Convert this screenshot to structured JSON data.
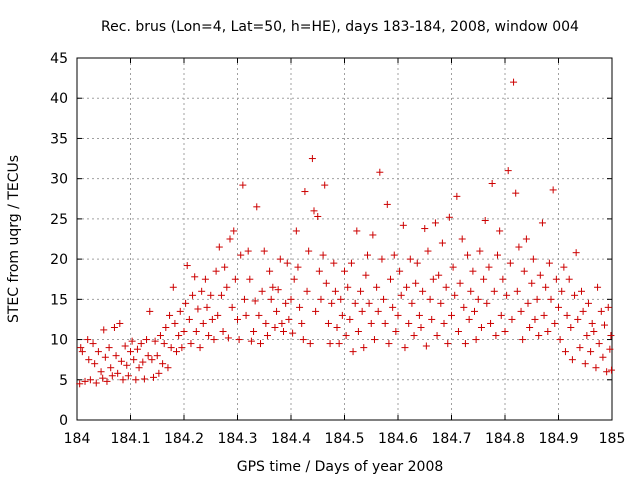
{
  "chart_data": {
    "type": "scatter",
    "title": "Rec. brus (Lon=4, Lat=50, h=HE), days 183-184, 2008, window 004",
    "xlabel": "GPS time / Days of year 2008",
    "ylabel": "STEC from uqrg / TECUs",
    "xlim": [
      184,
      185
    ],
    "ylim": [
      0,
      45
    ],
    "xticks": [
      "184",
      "184.1",
      "184.2",
      "184.3",
      "184.4",
      "184.5",
      "184.6",
      "184.7",
      "184.8",
      "184.9",
      "185"
    ],
    "yticks": [
      "0",
      "5",
      "10",
      "15",
      "20",
      "25",
      "30",
      "35",
      "40",
      "45"
    ],
    "grid": true,
    "marker": "plus",
    "series_color": "#cc0000",
    "series": [
      {
        "name": "STEC",
        "points": [
          [
            184.005,
            4.5
          ],
          [
            184.007,
            9.0
          ],
          [
            184.01,
            8.5
          ],
          [
            184.015,
            4.8
          ],
          [
            184.02,
            10.0
          ],
          [
            184.022,
            7.5
          ],
          [
            184.025,
            5.0
          ],
          [
            184.03,
            9.5
          ],
          [
            184.033,
            7.0
          ],
          [
            184.036,
            4.6
          ],
          [
            184.04,
            8.5
          ],
          [
            184.045,
            6.0
          ],
          [
            184.048,
            5.2
          ],
          [
            184.05,
            11.2
          ],
          [
            184.053,
            7.8
          ],
          [
            184.056,
            4.8
          ],
          [
            184.06,
            9.0
          ],
          [
            184.063,
            6.5
          ],
          [
            184.066,
            5.5
          ],
          [
            184.07,
            11.5
          ],
          [
            184.073,
            8.0
          ],
          [
            184.076,
            5.8
          ],
          [
            184.08,
            12.0
          ],
          [
            184.083,
            7.3
          ],
          [
            184.086,
            5.0
          ],
          [
            184.09,
            9.2
          ],
          [
            184.093,
            6.8
          ],
          [
            184.096,
            5.5
          ],
          [
            184.1,
            8.5
          ],
          [
            184.103,
            9.8
          ],
          [
            184.106,
            7.5
          ],
          [
            184.11,
            5.0
          ],
          [
            184.113,
            8.8
          ],
          [
            184.116,
            6.5
          ],
          [
            184.12,
            9.5
          ],
          [
            184.123,
            7.2
          ],
          [
            184.126,
            5.1
          ],
          [
            184.13,
            10.0
          ],
          [
            184.133,
            8.0
          ],
          [
            184.136,
            13.5
          ],
          [
            184.14,
            7.5
          ],
          [
            184.143,
            5.3
          ],
          [
            184.146,
            9.8
          ],
          [
            184.15,
            8.0
          ],
          [
            184.153,
            5.8
          ],
          [
            184.156,
            10.5
          ],
          [
            184.16,
            7.0
          ],
          [
            184.163,
            9.5
          ],
          [
            184.166,
            11.5
          ],
          [
            184.17,
            6.5
          ],
          [
            184.173,
            13.0
          ],
          [
            184.176,
            9.0
          ],
          [
            184.18,
            16.5
          ],
          [
            184.183,
            12.0
          ],
          [
            184.186,
            8.5
          ],
          [
            184.19,
            10.5
          ],
          [
            184.193,
            13.5
          ],
          [
            184.196,
            9.0
          ],
          [
            184.2,
            11.0
          ],
          [
            184.203,
            14.5
          ],
          [
            184.206,
            19.2
          ],
          [
            184.21,
            12.5
          ],
          [
            184.213,
            9.5
          ],
          [
            184.216,
            15.5
          ],
          [
            184.22,
            17.8
          ],
          [
            184.223,
            11.0
          ],
          [
            184.226,
            13.8
          ],
          [
            184.23,
            9.0
          ],
          [
            184.233,
            16.0
          ],
          [
            184.236,
            12.0
          ],
          [
            184.24,
            17.5
          ],
          [
            184.243,
            14.0
          ],
          [
            184.246,
            10.5
          ],
          [
            184.25,
            15.5
          ],
          [
            184.253,
            12.5
          ],
          [
            184.256,
            10.0
          ],
          [
            184.26,
            18.5
          ],
          [
            184.263,
            13.0
          ],
          [
            184.266,
            21.5
          ],
          [
            184.27,
            15.5
          ],
          [
            184.273,
            11.0
          ],
          [
            184.276,
            19.0
          ],
          [
            184.28,
            16.5
          ],
          [
            184.283,
            10.2
          ],
          [
            184.286,
            22.5
          ],
          [
            184.29,
            14.0
          ],
          [
            184.293,
            23.5
          ],
          [
            184.296,
            17.5
          ],
          [
            184.3,
            12.5
          ],
          [
            184.303,
            10.0
          ],
          [
            184.306,
            20.5
          ],
          [
            184.31,
            29.2
          ],
          [
            184.313,
            15.0
          ],
          [
            184.316,
            13.0
          ],
          [
            184.32,
            21.0
          ],
          [
            184.323,
            17.5
          ],
          [
            184.326,
            9.8
          ],
          [
            184.33,
            11.0
          ],
          [
            184.333,
            14.8
          ],
          [
            184.336,
            26.5
          ],
          [
            184.34,
            13.0
          ],
          [
            184.343,
            9.5
          ],
          [
            184.346,
            16.0
          ],
          [
            184.35,
            21.0
          ],
          [
            184.353,
            12.0
          ],
          [
            184.356,
            10.5
          ],
          [
            184.36,
            18.5
          ],
          [
            184.363,
            15.0
          ],
          [
            184.366,
            16.5
          ],
          [
            184.37,
            11.5
          ],
          [
            184.373,
            13.5
          ],
          [
            184.376,
            16.2
          ],
          [
            184.38,
            20.0
          ],
          [
            184.383,
            12.0
          ],
          [
            184.386,
            11.0
          ],
          [
            184.39,
            14.5
          ],
          [
            184.393,
            19.5
          ],
          [
            184.396,
            12.5
          ],
          [
            184.4,
            15.0
          ],
          [
            184.403,
            10.8
          ],
          [
            184.406,
            17.5
          ],
          [
            184.41,
            23.5
          ],
          [
            184.413,
            19.0
          ],
          [
            184.416,
            14.0
          ],
          [
            184.42,
            12.0
          ],
          [
            184.423,
            10.0
          ],
          [
            184.426,
            28.4
          ],
          [
            184.43,
            16.0
          ],
          [
            184.433,
            21.0
          ],
          [
            184.436,
            9.5
          ],
          [
            184.44,
            32.5
          ],
          [
            184.443,
            26.0
          ],
          [
            184.446,
            13.5
          ],
          [
            184.45,
            25.3
          ],
          [
            184.453,
            18.5
          ],
          [
            184.456,
            15.0
          ],
          [
            184.46,
            20.5
          ],
          [
            184.463,
            29.2
          ],
          [
            184.466,
            17.0
          ],
          [
            184.47,
            12.0
          ],
          [
            184.473,
            9.5
          ],
          [
            184.476,
            14.5
          ],
          [
            184.48,
            19.5
          ],
          [
            184.483,
            16.0
          ],
          [
            184.486,
            11.5
          ],
          [
            184.49,
            9.5
          ],
          [
            184.493,
            15.0
          ],
          [
            184.496,
            13.0
          ],
          [
            184.5,
            18.5
          ],
          [
            184.503,
            10.5
          ],
          [
            184.506,
            16.5
          ],
          [
            184.51,
            12.5
          ],
          [
            184.513,
            19.5
          ],
          [
            184.516,
            8.5
          ],
          [
            184.52,
            14.5
          ],
          [
            184.523,
            23.5
          ],
          [
            184.526,
            11.0
          ],
          [
            184.53,
            16.0
          ],
          [
            184.533,
            13.5
          ],
          [
            184.536,
            9.0
          ],
          [
            184.54,
            18.0
          ],
          [
            184.543,
            20.5
          ],
          [
            184.546,
            14.5
          ],
          [
            184.55,
            12.0
          ],
          [
            184.553,
            23.0
          ],
          [
            184.556,
            10.0
          ],
          [
            184.56,
            16.5
          ],
          [
            184.563,
            13.5
          ],
          [
            184.566,
            30.8
          ],
          [
            184.57,
            20.0
          ],
          [
            184.573,
            15.0
          ],
          [
            184.576,
            12.0
          ],
          [
            184.58,
            26.8
          ],
          [
            184.583,
            9.5
          ],
          [
            184.586,
            17.5
          ],
          [
            184.59,
            14.0
          ],
          [
            184.593,
            20.5
          ],
          [
            184.596,
            11.0
          ],
          [
            184.6,
            13.0
          ],
          [
            184.603,
            18.5
          ],
          [
            184.606,
            15.5
          ],
          [
            184.61,
            24.2
          ],
          [
            184.613,
            9.0
          ],
          [
            184.616,
            16.5
          ],
          [
            184.62,
            12.0
          ],
          [
            184.623,
            20.0
          ],
          [
            184.626,
            14.5
          ],
          [
            184.63,
            10.5
          ],
          [
            184.633,
            17.0
          ],
          [
            184.636,
            19.5
          ],
          [
            184.64,
            13.0
          ],
          [
            184.643,
            11.5
          ],
          [
            184.646,
            16.0
          ],
          [
            184.65,
            23.8
          ],
          [
            184.653,
            9.2
          ],
          [
            184.656,
            21.0
          ],
          [
            184.66,
            15.0
          ],
          [
            184.663,
            12.5
          ],
          [
            184.666,
            17.5
          ],
          [
            184.67,
            24.5
          ],
          [
            184.673,
            10.5
          ],
          [
            184.676,
            18.0
          ],
          [
            184.68,
            14.5
          ],
          [
            184.683,
            22.0
          ],
          [
            184.686,
            12.0
          ],
          [
            184.69,
            16.5
          ],
          [
            184.693,
            9.5
          ],
          [
            184.696,
            25.2
          ],
          [
            184.7,
            13.0
          ],
          [
            184.703,
            19.0
          ],
          [
            184.706,
            15.5
          ],
          [
            184.71,
            27.8
          ],
          [
            184.713,
            11.0
          ],
          [
            184.716,
            17.0
          ],
          [
            184.72,
            22.5
          ],
          [
            184.723,
            14.0
          ],
          [
            184.726,
            9.5
          ],
          [
            184.73,
            20.5
          ],
          [
            184.733,
            12.5
          ],
          [
            184.736,
            16.0
          ],
          [
            184.74,
            18.5
          ],
          [
            184.743,
            13.5
          ],
          [
            184.746,
            10.0
          ],
          [
            184.75,
            15.0
          ],
          [
            184.753,
            21.0
          ],
          [
            184.756,
            11.5
          ],
          [
            184.76,
            17.5
          ],
          [
            184.763,
            24.8
          ],
          [
            184.766,
            14.5
          ],
          [
            184.77,
            19.0
          ],
          [
            184.773,
            12.0
          ],
          [
            184.776,
            29.4
          ],
          [
            184.78,
            16.0
          ],
          [
            184.783,
            10.5
          ],
          [
            184.786,
            20.5
          ],
          [
            184.79,
            23.5
          ],
          [
            184.793,
            13.0
          ],
          [
            184.796,
            17.5
          ],
          [
            184.8,
            11.0
          ],
          [
            184.803,
            15.5
          ],
          [
            184.806,
            31.0
          ],
          [
            184.81,
            19.5
          ],
          [
            184.813,
            12.5
          ],
          [
            184.816,
            42.0
          ],
          [
            184.82,
            28.2
          ],
          [
            184.823,
            16.0
          ],
          [
            184.826,
            21.5
          ],
          [
            184.83,
            13.5
          ],
          [
            184.833,
            10.0
          ],
          [
            184.836,
            18.5
          ],
          [
            184.84,
            22.5
          ],
          [
            184.843,
            14.5
          ],
          [
            184.846,
            11.5
          ],
          [
            184.85,
            17.0
          ],
          [
            184.853,
            20.0
          ],
          [
            184.856,
            12.5
          ],
          [
            184.86,
            15.0
          ],
          [
            184.863,
            10.5
          ],
          [
            184.866,
            18.0
          ],
          [
            184.87,
            24.5
          ],
          [
            184.873,
            13.0
          ],
          [
            184.876,
            16.5
          ],
          [
            184.88,
            11.0
          ],
          [
            184.883,
            19.5
          ],
          [
            184.886,
            15.0
          ],
          [
            184.89,
            28.6
          ],
          [
            184.893,
            12.0
          ],
          [
            184.896,
            17.5
          ],
          [
            184.9,
            14.0
          ],
          [
            184.903,
            10.0
          ],
          [
            184.906,
            16.0
          ],
          [
            184.91,
            19.0
          ],
          [
            184.913,
            8.5
          ],
          [
            184.916,
            13.0
          ],
          [
            184.92,
            17.5
          ],
          [
            184.923,
            11.5
          ],
          [
            184.926,
            7.5
          ],
          [
            184.93,
            15.5
          ],
          [
            184.933,
            20.8
          ],
          [
            184.936,
            12.5
          ],
          [
            184.94,
            9.0
          ],
          [
            184.943,
            16.0
          ],
          [
            184.946,
            13.5
          ],
          [
            184.95,
            7.0
          ],
          [
            184.953,
            10.5
          ],
          [
            184.956,
            14.5
          ],
          [
            184.96,
            8.5
          ],
          [
            184.963,
            12.0
          ],
          [
            184.966,
            11.0
          ],
          [
            184.97,
            6.5
          ],
          [
            184.973,
            16.5
          ],
          [
            184.976,
            9.5
          ],
          [
            184.98,
            13.5
          ],
          [
            184.983,
            7.8
          ],
          [
            184.986,
            11.8
          ],
          [
            184.99,
            6.0
          ],
          [
            184.993,
            14.0
          ],
          [
            184.996,
            8.8
          ],
          [
            184.998,
            10.5
          ],
          [
            184.999,
            6.2
          ]
        ]
      }
    ]
  }
}
